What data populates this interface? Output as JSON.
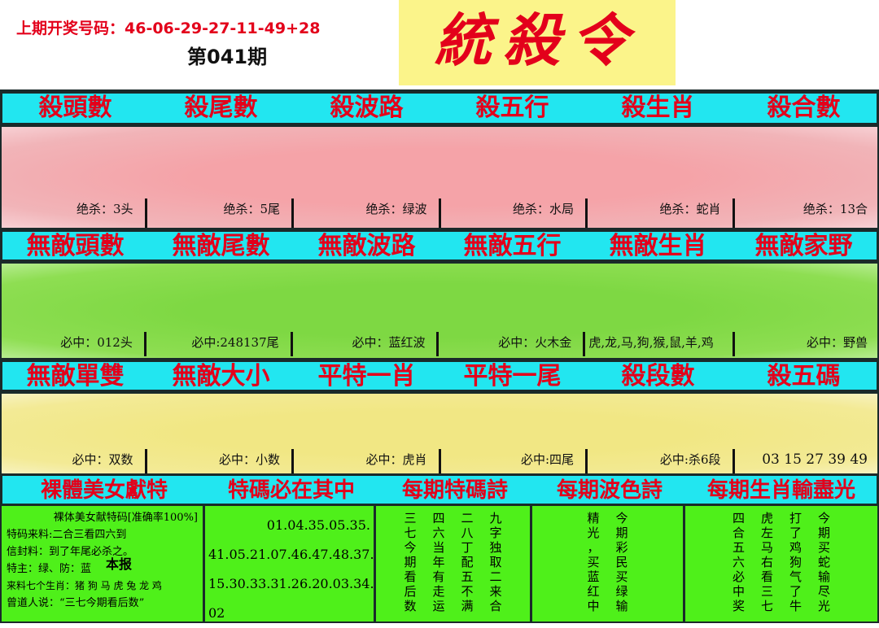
{
  "header": {
    "previous_draw": "上期开奖号码：46-06-29-27-11-49+28",
    "issue": "第041期",
    "logo": "統殺令"
  },
  "colors": {
    "header_bar": "#22e6f0",
    "header_text": "#e3001b",
    "pink": "#f5a3a8",
    "green": "#7ed843",
    "yellow": "#f1e784",
    "bottom": "#4ff01a"
  },
  "sections": [
    {
      "headers": [
        "殺頭數",
        "殺尾數",
        "殺波路",
        "殺五行",
        "殺生肖",
        "殺合數"
      ],
      "values": [
        "绝杀：3头",
        "绝杀：5尾",
        "绝杀：绿波",
        "绝杀：水局",
        "绝杀：蛇肖",
        "绝杀：13合"
      ]
    },
    {
      "headers": [
        "無敵頭數",
        "無敵尾數",
        "無敵波路",
        "無敵五行",
        "無敵生肖",
        "無敵家野"
      ],
      "values": [
        "必中：012头",
        "必中:248137尾",
        "必中：蓝红波",
        "必中：火木金",
        "虎,龙,马,狗,猴,鼠,羊,鸡",
        "必中：野兽"
      ]
    },
    {
      "headers": [
        "無敵單雙",
        "無敵大小",
        "平特一肖",
        "平特一尾",
        "殺段數",
        "殺五碼"
      ],
      "values": [
        "必中：双数",
        "必中：小数",
        "必中：虎肖",
        "必中:四尾",
        "必中:杀6段",
        "03 15 27 39 49"
      ]
    }
  ],
  "bottom": {
    "headers": [
      "裸體美女獻特",
      "特碼必在其中",
      "每期特碼詩",
      "每期波色詩",
      "每期生肖輸盡光"
    ],
    "left_lines": [
      "裸体美女献特码[准确率100%]",
      "特码来料:二合三看四六到",
      "信封料：到了年尾必杀之。",
      "特主：绿、防：蓝",
      "来料七个生肖：猪 狗 马 虎 兔 龙 鸡",
      "曾道人说：“三七今期看后数”"
    ],
    "stamp": "本报",
    "number_lines": [
      "01.04.35.05.35.",
      "41.05.21.07.46.47.48.37.",
      "15.30.33.31.26.20.03.34.",
      "02"
    ],
    "poem_code": [
      "三七今期看后数",
      "四六当年有走运",
      "二八丁配五不满",
      "九字独取二来合"
    ],
    "poem_color": [
      "精光，买蓝红中",
      "今期彩民买绿输"
    ],
    "poem_zodiac": [
      "四合五六必中奖",
      "虎左马右看三七",
      "打了鸡狗气了牛",
      "今期买蛇输尽光"
    ]
  }
}
